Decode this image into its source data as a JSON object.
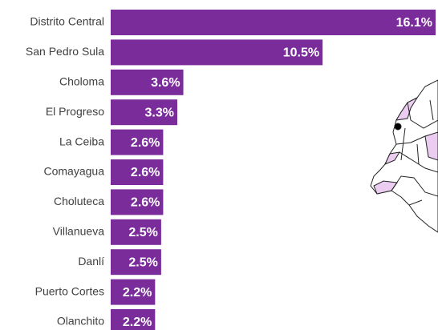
{
  "chart_data": {
    "type": "bar",
    "orientation": "horizontal",
    "categories": [
      "Distrito Central",
      "San Pedro Sula",
      "Choloma",
      "El Progreso",
      "La Ceiba",
      "Comayagua",
      "Choluteca",
      "Villanueva",
      "Danlí",
      "Puerto Cortes",
      "Olanchito"
    ],
    "values": [
      16.1,
      10.5,
      3.6,
      3.3,
      2.6,
      2.6,
      2.6,
      2.5,
      2.5,
      2.2,
      2.2
    ],
    "value_labels": [
      "16.1%",
      "10.5%",
      "3.6%",
      "3.3%",
      "2.6%",
      "2.6%",
      "2.6%",
      "2.5%",
      "2.5%",
      "2.2%",
      "2.2%"
    ],
    "color": "#7a2c9b"
  }
}
